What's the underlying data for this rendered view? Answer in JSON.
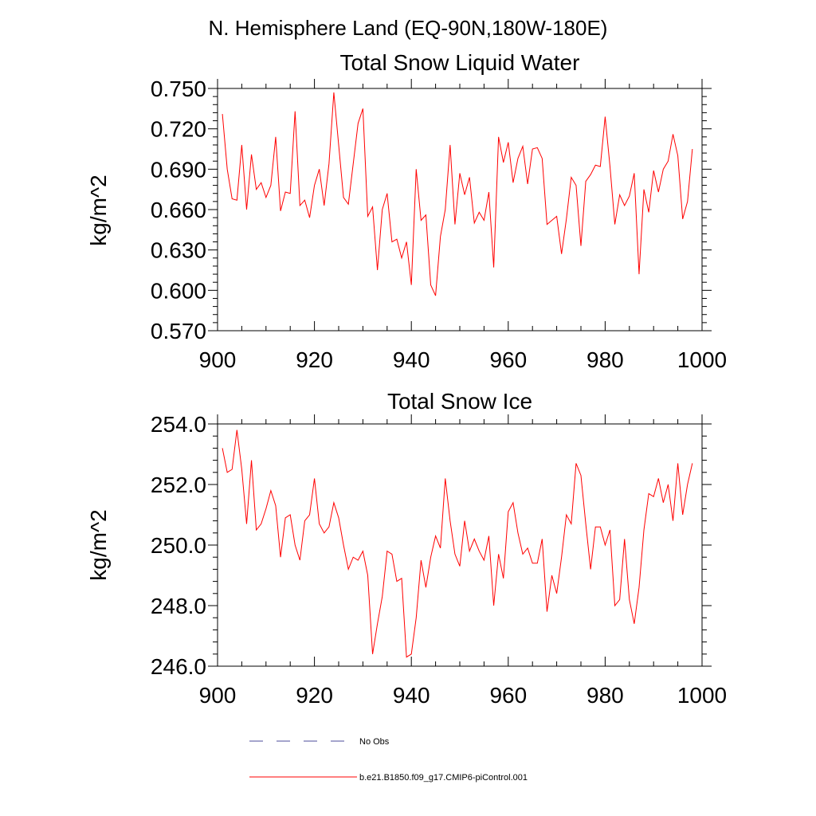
{
  "page_title": "N. Hemisphere Land (EQ-90N,180W-180E)",
  "chart_data": [
    {
      "type": "line",
      "title": "Total Snow Liquid Water",
      "ylabel": "kg/m^2",
      "xlabel": "",
      "xlim": [
        900,
        1000
      ],
      "ylim": [
        0.57,
        0.75
      ],
      "xticks": [
        "900",
        "920",
        "940",
        "960",
        "980",
        "1000"
      ],
      "yticks": [
        "0.570",
        "0.600",
        "0.630",
        "0.660",
        "0.690",
        "0.720",
        "0.750"
      ],
      "series": [
        {
          "name": "b.e21.B1850.f09_g17.CMIP6-piControl.001",
          "color": "#ff0000",
          "x": [
            901,
            902,
            903,
            904,
            905,
            906,
            907,
            908,
            909,
            910,
            911,
            912,
            913,
            914,
            915,
            916,
            917,
            918,
            919,
            920,
            921,
            922,
            923,
            924,
            925,
            926,
            927,
            928,
            929,
            930,
            931,
            932,
            933,
            934,
            935,
            936,
            937,
            938,
            939,
            940,
            941,
            942,
            943,
            944,
            945,
            946,
            947,
            948,
            949,
            950,
            951,
            952,
            953,
            954,
            955,
            956,
            957,
            958,
            959,
            960,
            961,
            962,
            963,
            964,
            965,
            966,
            967,
            968,
            969,
            970,
            971,
            972,
            973,
            974,
            975,
            976,
            977,
            978,
            979,
            980,
            981,
            982,
            983,
            984,
            985,
            986,
            987,
            988,
            989,
            990,
            991,
            992,
            993,
            994,
            995,
            996,
            997,
            998
          ],
          "values": [
            0.731,
            0.69,
            0.668,
            0.667,
            0.708,
            0.66,
            0.701,
            0.675,
            0.68,
            0.669,
            0.678,
            0.714,
            0.659,
            0.673,
            0.672,
            0.733,
            0.663,
            0.667,
            0.654,
            0.678,
            0.69,
            0.663,
            0.694,
            0.747,
            0.708,
            0.669,
            0.664,
            0.694,
            0.724,
            0.735,
            0.655,
            0.662,
            0.615,
            0.66,
            0.672,
            0.636,
            0.638,
            0.624,
            0.636,
            0.604,
            0.69,
            0.652,
            0.656,
            0.604,
            0.596,
            0.64,
            0.66,
            0.708,
            0.649,
            0.687,
            0.671,
            0.684,
            0.65,
            0.658,
            0.652,
            0.673,
            0.617,
            0.714,
            0.695,
            0.71,
            0.68,
            0.698,
            0.707,
            0.679,
            0.705,
            0.706,
            0.698,
            0.649,
            0.652,
            0.655,
            0.627,
            0.653,
            0.684,
            0.678,
            0.633,
            0.681,
            0.686,
            0.693,
            0.692,
            0.729,
            0.692,
            0.649,
            0.671,
            0.663,
            0.67,
            0.687,
            0.612,
            0.675,
            0.658,
            0.689,
            0.673,
            0.69,
            0.696,
            0.716,
            0.7,
            0.653,
            0.666,
            0.705
          ]
        }
      ]
    },
    {
      "type": "line",
      "title": "Total Snow Ice",
      "ylabel": "kg/m^2",
      "xlabel": "",
      "xlim": [
        900,
        1000
      ],
      "ylim": [
        246.0,
        254.0
      ],
      "xticks": [
        "900",
        "920",
        "940",
        "960",
        "980",
        "1000"
      ],
      "yticks": [
        "246.0",
        "248.0",
        "250.0",
        "252.0",
        "254.0"
      ],
      "series": [
        {
          "name": "b.e21.B1850.f09_g17.CMIP6-piControl.001",
          "color": "#ff0000",
          "x": [
            901,
            902,
            903,
            904,
            905,
            906,
            907,
            908,
            909,
            910,
            911,
            912,
            913,
            914,
            915,
            916,
            917,
            918,
            919,
            920,
            921,
            922,
            923,
            924,
            925,
            926,
            927,
            928,
            929,
            930,
            931,
            932,
            933,
            934,
            935,
            936,
            937,
            938,
            939,
            940,
            941,
            942,
            943,
            944,
            945,
            946,
            947,
            948,
            949,
            950,
            951,
            952,
            953,
            954,
            955,
            956,
            957,
            958,
            959,
            960,
            961,
            962,
            963,
            964,
            965,
            966,
            967,
            968,
            969,
            970,
            971,
            972,
            973,
            974,
            975,
            976,
            977,
            978,
            979,
            980,
            981,
            982,
            983,
            984,
            985,
            986,
            987,
            988,
            989,
            990,
            991,
            992,
            993,
            994,
            995,
            996,
            997,
            998
          ],
          "values": [
            253.2,
            252.4,
            252.5,
            253.8,
            252.5,
            250.7,
            252.8,
            250.5,
            250.7,
            251.2,
            251.8,
            251.3,
            249.6,
            250.9,
            251.0,
            250.0,
            249.5,
            250.8,
            251.0,
            252.2,
            250.7,
            250.4,
            250.6,
            251.4,
            250.9,
            250.0,
            249.2,
            249.6,
            249.5,
            249.8,
            249.0,
            246.4,
            247.4,
            248.3,
            249.8,
            249.7,
            248.8,
            248.9,
            246.3,
            246.4,
            247.6,
            249.5,
            248.6,
            249.6,
            250.3,
            249.9,
            252.2,
            250.8,
            249.7,
            249.3,
            250.8,
            249.8,
            250.2,
            249.8,
            249.5,
            250.3,
            248.0,
            249.7,
            248.9,
            251.1,
            251.4,
            250.4,
            249.7,
            249.9,
            249.4,
            249.4,
            250.2,
            247.8,
            249.0,
            248.4,
            249.6,
            251.0,
            250.7,
            252.7,
            252.3,
            250.7,
            249.2,
            250.6,
            250.6,
            250.0,
            250.5,
            248.0,
            248.2,
            250.2,
            248.2,
            247.4,
            248.6,
            250.5,
            251.7,
            251.6,
            252.2,
            251.4,
            252.0,
            250.8,
            252.7,
            251.0,
            252.0,
            252.7
          ]
        }
      ]
    }
  ],
  "legend": [
    {
      "label": "No Obs",
      "color": "#4b4b9b",
      "style": "dashed"
    },
    {
      "label": "b.e21.B1850.f09_g17.CMIP6-piControl.001",
      "color": "#ff0000",
      "style": "solid"
    }
  ]
}
